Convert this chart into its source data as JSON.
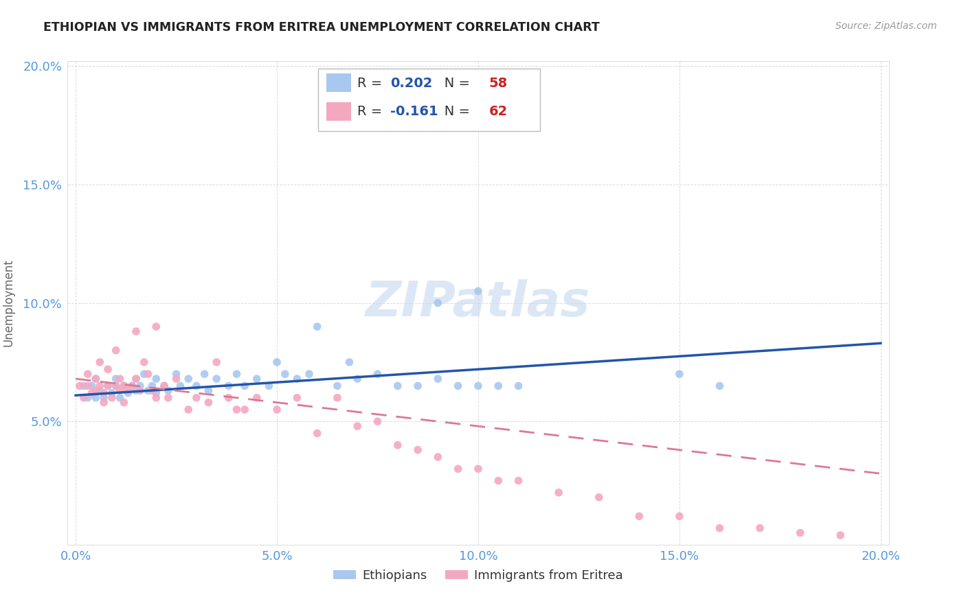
{
  "title": "ETHIOPIAN VS IMMIGRANTS FROM ERITREA UNEMPLOYMENT CORRELATION CHART",
  "source": "Source: ZipAtlas.com",
  "ylabel": "Unemployment",
  "xlabel": "",
  "xlim": [
    -0.002,
    0.202
  ],
  "ylim": [
    -0.002,
    0.202
  ],
  "xtick_labels": [
    "0.0%",
    "5.0%",
    "10.0%",
    "15.0%",
    "20.0%"
  ],
  "xtick_vals": [
    0.0,
    0.05,
    0.1,
    0.15,
    0.2
  ],
  "ytick_labels": [
    "5.0%",
    "10.0%",
    "15.0%",
    "20.0%"
  ],
  "ytick_vals": [
    0.05,
    0.1,
    0.15,
    0.2
  ],
  "blue_color": "#A8C8F0",
  "pink_color": "#F4A8C0",
  "blue_line_color": "#2255AA",
  "pink_line_color": "#DD7799",
  "axis_label_color": "#5599DD",
  "watermark_color": "#C5D8F0",
  "watermark": "ZIPatlas",
  "R_blue": "0.202",
  "N_blue": "58",
  "R_pink": "-0.161",
  "N_pink": "62",
  "blue_scatter_x": [
    0.002,
    0.003,
    0.004,
    0.005,
    0.005,
    0.006,
    0.007,
    0.008,
    0.009,
    0.01,
    0.01,
    0.011,
    0.012,
    0.013,
    0.014,
    0.015,
    0.015,
    0.016,
    0.017,
    0.018,
    0.019,
    0.02,
    0.02,
    0.022,
    0.023,
    0.025,
    0.026,
    0.028,
    0.03,
    0.032,
    0.033,
    0.035,
    0.038,
    0.04,
    0.042,
    0.045,
    0.048,
    0.05,
    0.052,
    0.055,
    0.058,
    0.06,
    0.065,
    0.068,
    0.07,
    0.075,
    0.08,
    0.085,
    0.09,
    0.095,
    0.1,
    0.105,
    0.11,
    0.15,
    0.16,
    0.095,
    0.09,
    0.1
  ],
  "blue_scatter_y": [
    0.065,
    0.06,
    0.065,
    0.06,
    0.068,
    0.063,
    0.06,
    0.065,
    0.062,
    0.065,
    0.068,
    0.06,
    0.065,
    0.062,
    0.065,
    0.068,
    0.063,
    0.065,
    0.07,
    0.063,
    0.065,
    0.068,
    0.062,
    0.065,
    0.063,
    0.07,
    0.065,
    0.068,
    0.065,
    0.07,
    0.063,
    0.068,
    0.065,
    0.07,
    0.065,
    0.068,
    0.065,
    0.075,
    0.07,
    0.068,
    0.07,
    0.09,
    0.065,
    0.075,
    0.068,
    0.07,
    0.065,
    0.065,
    0.068,
    0.065,
    0.065,
    0.065,
    0.065,
    0.07,
    0.065,
    0.175,
    0.1,
    0.105
  ],
  "pink_scatter_x": [
    0.001,
    0.002,
    0.003,
    0.003,
    0.004,
    0.005,
    0.005,
    0.006,
    0.006,
    0.007,
    0.007,
    0.008,
    0.008,
    0.009,
    0.01,
    0.01,
    0.011,
    0.011,
    0.012,
    0.012,
    0.013,
    0.014,
    0.015,
    0.015,
    0.016,
    0.017,
    0.018,
    0.019,
    0.02,
    0.02,
    0.022,
    0.023,
    0.025,
    0.028,
    0.03,
    0.033,
    0.035,
    0.038,
    0.04,
    0.042,
    0.045,
    0.05,
    0.055,
    0.06,
    0.065,
    0.07,
    0.075,
    0.08,
    0.085,
    0.09,
    0.095,
    0.1,
    0.105,
    0.11,
    0.12,
    0.13,
    0.14,
    0.15,
    0.16,
    0.17,
    0.18,
    0.19
  ],
  "pink_scatter_y": [
    0.065,
    0.06,
    0.07,
    0.065,
    0.062,
    0.068,
    0.063,
    0.075,
    0.065,
    0.062,
    0.058,
    0.065,
    0.072,
    0.06,
    0.065,
    0.08,
    0.063,
    0.068,
    0.065,
    0.058,
    0.063,
    0.065,
    0.088,
    0.068,
    0.063,
    0.075,
    0.07,
    0.063,
    0.09,
    0.06,
    0.065,
    0.06,
    0.068,
    0.055,
    0.06,
    0.058,
    0.075,
    0.06,
    0.055,
    0.055,
    0.06,
    0.055,
    0.06,
    0.045,
    0.06,
    0.048,
    0.05,
    0.04,
    0.038,
    0.035,
    0.03,
    0.03,
    0.025,
    0.025,
    0.02,
    0.018,
    0.01,
    0.01,
    0.005,
    0.005,
    0.003,
    0.002
  ],
  "blue_line_x": [
    0.0,
    0.2
  ],
  "blue_line_y": [
    0.061,
    0.083
  ],
  "pink_line_x": [
    0.0,
    0.2
  ],
  "pink_line_y": [
    0.068,
    0.028
  ],
  "background_color": "#FFFFFF",
  "grid_color": "#CCCCCC",
  "marker_size": 70
}
